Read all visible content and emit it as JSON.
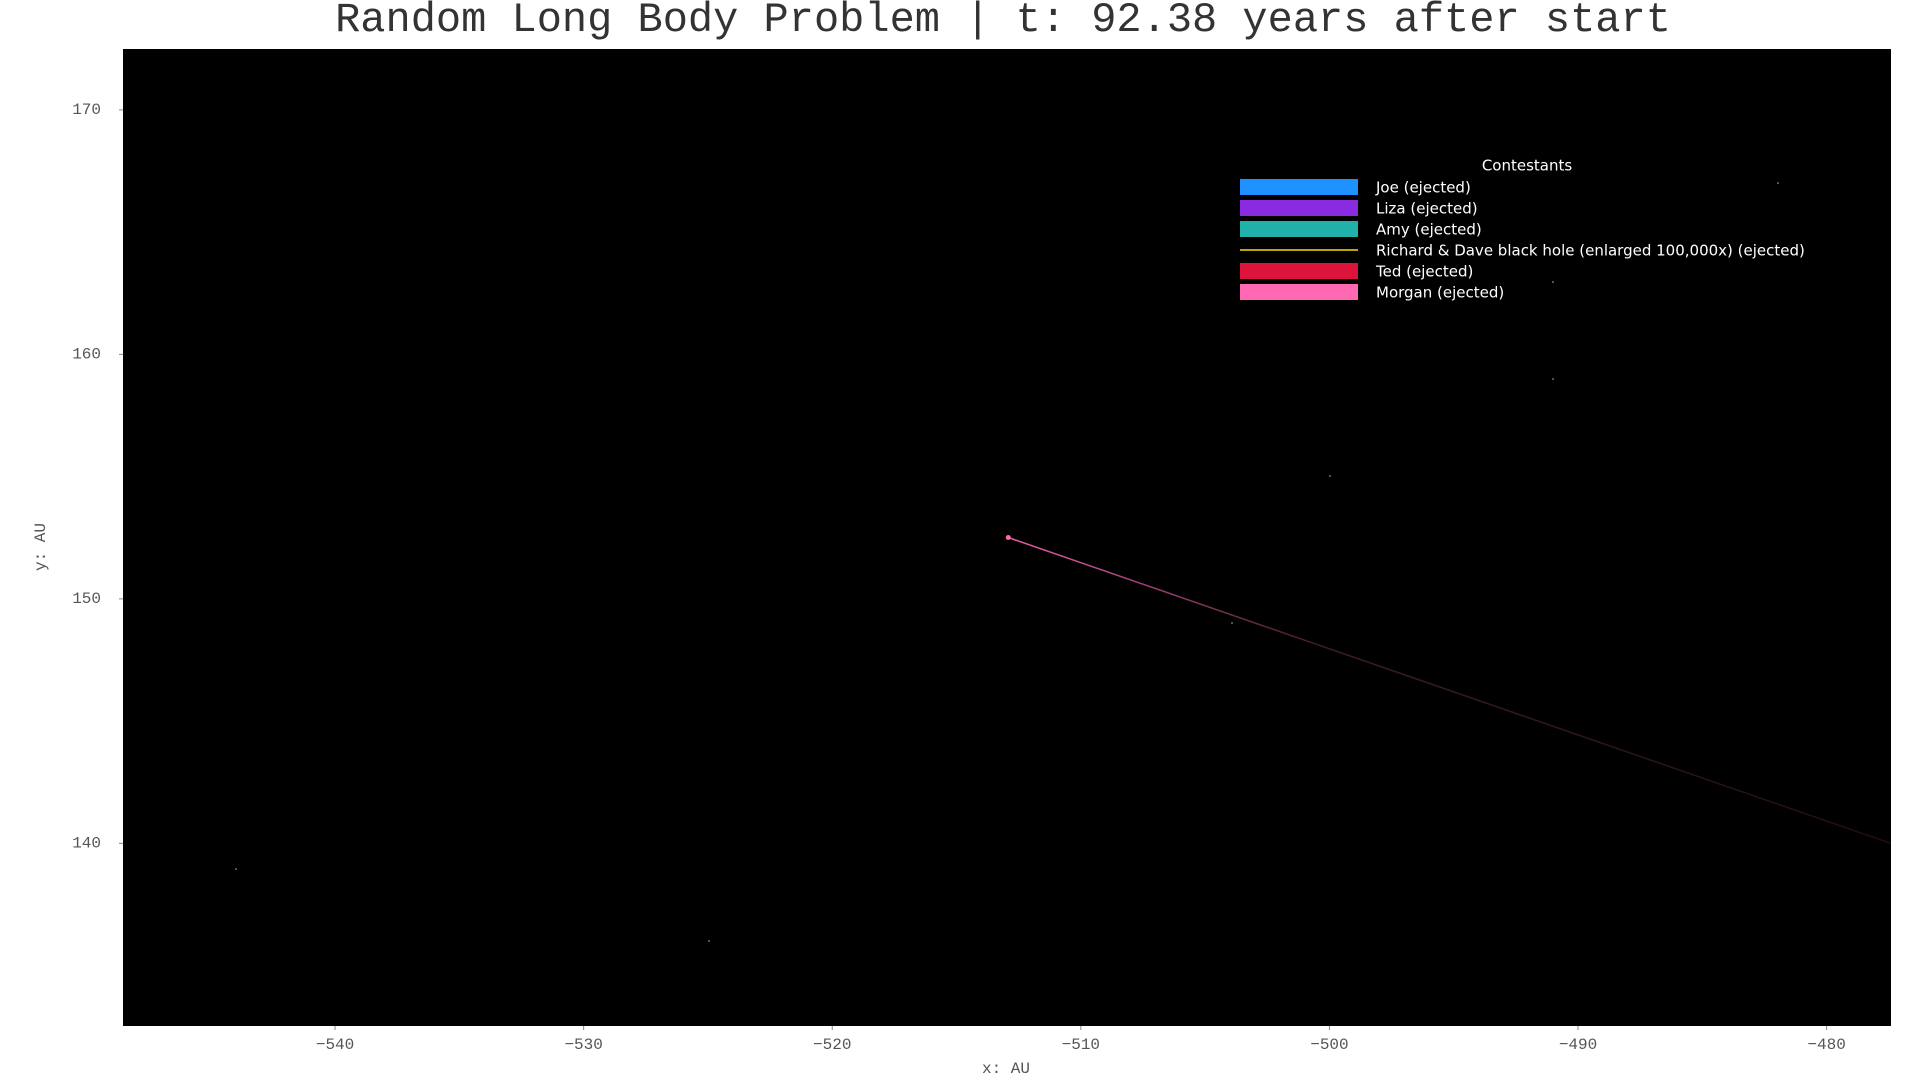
{
  "chart_data": {
    "type": "line",
    "title": "Random Long Body Problem  |  t: 92.38 years after start",
    "xlabel": "x: AU",
    "ylabel": "y: AU",
    "xlim": [
      -548.53,
      -477.41
    ],
    "ylim": [
      132.53,
      172.49
    ],
    "xticks": [
      {
        "value": -540,
        "label": "−540"
      },
      {
        "value": -530,
        "label": "−530"
      },
      {
        "value": -520,
        "label": "−520"
      },
      {
        "value": -510,
        "label": "−510"
      },
      {
        "value": -500,
        "label": "−500"
      },
      {
        "value": -490,
        "label": "−490"
      },
      {
        "value": -480,
        "label": "−480"
      }
    ],
    "yticks": [
      140,
      150,
      160,
      170
    ],
    "background": "#000000",
    "legend_title": "Contestants",
    "legend": "upper right",
    "series": [
      {
        "name": "Joe (ejected)",
        "color": "#1e90ff"
      },
      {
        "name": "Liza (ejected)",
        "color": "#8a2be2"
      },
      {
        "name": "Amy (ejected)",
        "color": "#20b2aa"
      },
      {
        "name": "Richard & Dave black hole (enlarged 100,000x) (ejected)",
        "color": "#ffd700",
        "legend_marker": "line"
      },
      {
        "name": "Ted (ejected)",
        "color": "#dc143c"
      },
      {
        "name": "Morgan (ejected)",
        "color": "#ff69b4",
        "x": [
          -512.92,
          -477.41
        ],
        "values": [
          152.51,
          140.0
        ]
      }
    ]
  }
}
